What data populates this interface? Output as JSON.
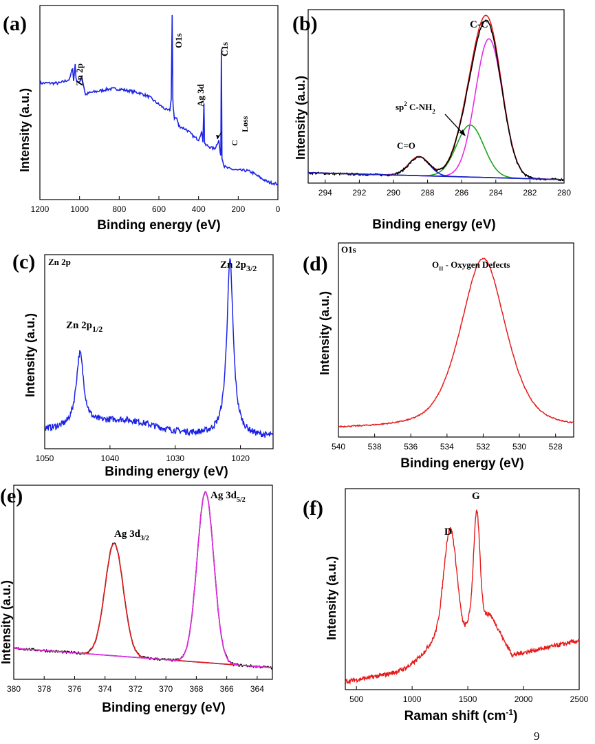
{
  "page_number": "9",
  "chart_data": [
    {
      "id": "a",
      "type": "line",
      "panel_label": "(a)",
      "xlabel": "Binding energy (eV)",
      "ylabel": "Intensity (a.u.)",
      "xlim": [
        1200,
        0
      ],
      "ylim": [
        0,
        100
      ],
      "xticks": [
        "1200",
        "1000",
        "800",
        "600",
        "400",
        "200",
        "0"
      ],
      "tick_values": [
        1200,
        1000,
        800,
        600,
        400,
        200,
        0
      ],
      "color": "#1a22e6",
      "series": [
        {
          "name": "survey",
          "x": [
            1200,
            1100,
            1050,
            1035,
            1030,
            1022,
            1018,
            1000,
            990,
            970,
            950,
            900,
            850,
            800,
            750,
            700,
            650,
            600,
            560,
            545,
            538,
            533,
            530,
            528,
            522,
            510,
            500,
            480,
            460,
            440,
            420,
            400,
            385,
            378,
            373,
            370,
            366,
            360,
            340,
            320,
            305,
            298,
            292,
            288,
            285,
            282,
            278,
            270,
            250,
            200,
            160,
            130,
            100,
            50,
            0
          ],
          "y": [
            60,
            60,
            62,
            68,
            61,
            70,
            62,
            60,
            64,
            54,
            55,
            56,
            57,
            57,
            56,
            55,
            53,
            49,
            46,
            46,
            52,
            95,
            52,
            48,
            42,
            42,
            38,
            37,
            36,
            34,
            32,
            31,
            35,
            30,
            50,
            30,
            28,
            28,
            27,
            26,
            29,
            31,
            25,
            22,
            78,
            22,
            20,
            17,
            16,
            15,
            15,
            14,
            12,
            9,
            8
          ]
        }
      ],
      "annotations": [
        {
          "text": "Zn 2p"
        },
        {
          "text": "O1s"
        },
        {
          "text": "Ag 3d"
        },
        {
          "text": "C1s"
        },
        {
          "text": "C",
          "sub": "Loss"
        }
      ]
    },
    {
      "id": "b",
      "type": "line",
      "panel_label": "(b)",
      "xlabel": "Binding energy (eV)",
      "ylabel": "Intensity (a.u.)",
      "xlim": [
        295,
        280
      ],
      "ylim": [
        0,
        100
      ],
      "xticks": [
        "294",
        "292",
        "290",
        "288",
        "286",
        "284",
        "282",
        "280"
      ],
      "tick_values": [
        294,
        292,
        290,
        288,
        286,
        284,
        282,
        280
      ],
      "series": [
        {
          "name": "C-C",
          "color": "#e62ae6",
          "kind": "gauss",
          "center": 284.4,
          "amp": 80,
          "width": 0.8
        },
        {
          "name": "sp2 C-NH2",
          "color": "#1aa51a",
          "kind": "gauss",
          "center": 285.5,
          "amp": 30,
          "width": 0.8
        },
        {
          "name": "C=O",
          "color": "#1a22e6",
          "kind": "gauss",
          "center": 288.5,
          "amp": 11,
          "width": 0.6
        },
        {
          "name": "fit",
          "color": "#e61a1a",
          "kind": "sum"
        },
        {
          "name": "experimental",
          "color": "#000000",
          "kind": "sum-noisy"
        },
        {
          "name": "baseline",
          "color": "#1a22c8",
          "kind": "baseline",
          "y0": 6,
          "y1": 2
        }
      ],
      "annotations": [
        {
          "text": "C-C"
        },
        {
          "text": "sp",
          "sup": "2",
          "text2": " C-NH",
          "sub": "2"
        },
        {
          "text": "C=O"
        }
      ]
    },
    {
      "id": "c",
      "type": "line",
      "panel_label": "Zn 2p",
      "xlabel": "Binding energy (eV)",
      "ylabel": "Intensity (a.u.)",
      "xlim": [
        1050,
        1015
      ],
      "ylim": [
        0,
        100
      ],
      "xticks": [
        "1050",
        "1040",
        "1030",
        "1020"
      ],
      "tick_values": [
        1050,
        1040,
        1030,
        1020
      ],
      "color": "#1a22e6",
      "series": [
        {
          "name": "Zn 2p",
          "kind": "sum-noisy",
          "peaks": [
            {
              "center": 1044.6,
              "amp": 38,
              "width": 0.7
            },
            {
              "center": 1021.6,
              "amp": 90,
              "width": 0.6
            }
          ],
          "baseline_start": 10,
          "baseline_end": 6
        }
      ],
      "annotations": [
        {
          "text": "Zn 2p",
          "sub": "1/2"
        },
        {
          "text": "Zn 2p",
          "sub": "3/2"
        }
      ]
    },
    {
      "id": "d",
      "type": "line",
      "panel_label": "O1s",
      "xlabel": "Binding energy (eV)",
      "ylabel": "Intensity (a.u.)",
      "xlim": [
        540,
        527
      ],
      "ylim": [
        0,
        100
      ],
      "xticks": [
        "540",
        "538",
        "536",
        "534",
        "532",
        "530",
        "528"
      ],
      "tick_values": [
        540,
        538,
        536,
        534,
        532,
        530,
        528
      ],
      "color": "#e61a1a",
      "series": [
        {
          "name": "O1s",
          "kind": "voigt",
          "center": 532.0,
          "amp": 88,
          "width": 1.3,
          "base": 4
        }
      ],
      "annotations": [
        {
          "text": "O",
          "sub": "II",
          "text2": " - Oxygen Defects"
        }
      ]
    },
    {
      "id": "e",
      "type": "line",
      "panel_label": "(e)",
      "xlabel": "Binding energy (eV)",
      "ylabel": "Intensity (a.u.)",
      "xlim": [
        380,
        363
      ],
      "ylim": [
        0,
        100
      ],
      "xticks": [
        "380",
        "378",
        "376",
        "374",
        "372",
        "370",
        "368",
        "366",
        "364"
      ],
      "tick_values": [
        380,
        378,
        376,
        374,
        372,
        370,
        368,
        366,
        364
      ],
      "series": [
        {
          "name": "baseline",
          "color": "#1a22c8",
          "kind": "baseline",
          "y0": 16,
          "y1": 6
        },
        {
          "name": "experimental",
          "color": "#000000",
          "kind": "sum-noisy"
        },
        {
          "name": "Ag 3d3/2",
          "color": "#e61a1a",
          "kind": "gauss",
          "center": 373.4,
          "amp": 58,
          "width": 0.6
        },
        {
          "name": "Ag 3d5/2",
          "color": "#e62ae6",
          "kind": "gauss",
          "center": 367.4,
          "amp": 88,
          "width": 0.55
        }
      ],
      "annotations": [
        {
          "text": "Ag 3d",
          "sub": "3/2"
        },
        {
          "text": "Ag 3d",
          "sub": "5/2"
        }
      ]
    },
    {
      "id": "f",
      "type": "line",
      "panel_label": "(f)",
      "xlabel": "Raman shift (cm",
      "xlabel_sup": "-1",
      "xlabel_end": ")",
      "ylabel": "Intensity (a.u.)",
      "xlim": [
        400,
        2500
      ],
      "ylim": [
        0,
        100
      ],
      "xticks": [
        "500",
        "1000",
        "1500",
        "2000",
        "2500"
      ],
      "tick_values": [
        500,
        1000,
        1500,
        2000,
        2500
      ],
      "color": "#e61a1a",
      "series": [
        {
          "name": "Raman",
          "kind": "raman"
        }
      ],
      "annotations": [
        {
          "text": "D"
        },
        {
          "text": "G"
        }
      ]
    }
  ]
}
